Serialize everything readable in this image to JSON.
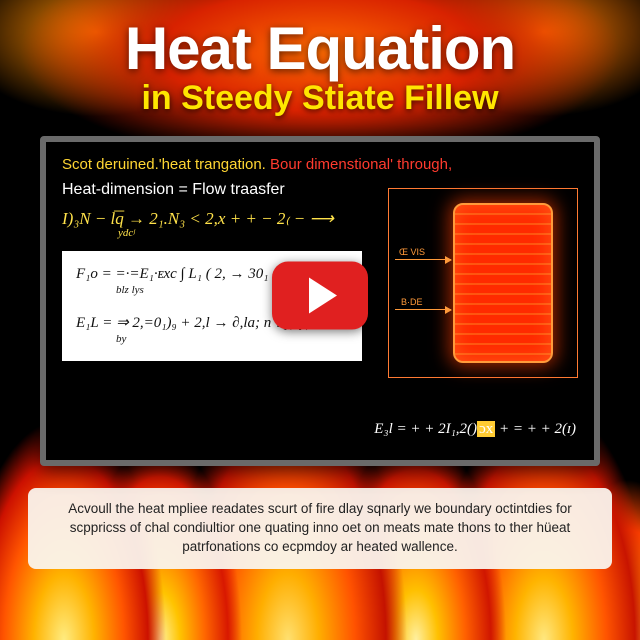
{
  "title": {
    "main": "Heat Equation",
    "sub": "in Steedy Stiate Fillew"
  },
  "slide": {
    "line1_yellow": "Scot deruined.'heat trangation.",
    "line1_red": "Bour dimenstional' through,",
    "line2": "Heat-dimension = Flow traasfer",
    "eq_yellow_main": "I)₃N − l͞q → 2₁.N₃ < 2,x + + − 2₍ − ⟶",
    "eq_yellow_sub": "ydcʲ",
    "whitebox": {
      "row1": "F₁o = =·=E₁·ᴇxc ∫ L₁ ( 2, → 30₁ = + 2,ĵ)",
      "row1_sub": "blz                    lys",
      "row2": "E₁L = ⇒ 2,=0₁)₉ + 2,l → ∂,la; n ?₁(ay)",
      "row2_sub": "by"
    },
    "diagram": {
      "label1": "Œ VIS",
      "label2": "B·DE",
      "outline_color": "#ff7a33",
      "fill_glow": "#ff2a00"
    },
    "eq_bottom_pre": "E₃l = + + 2I₁,2()",
    "eq_bottom_hl": "ɔx",
    "eq_bottom_post": " + = + + 2(ɪ)"
  },
  "caption": "Acvoull the heat mpliee readates scurt of fire dlay sqnarly we boundary octintdies for scppricss of chal condiultior one quating inno oet on meats mate thons to ther hüeat patrfonations co ecpmdoy ar heated wallence.",
  "colors": {
    "title_white": "#ffffff",
    "title_yellow": "#ffe600",
    "accent_red": "#ff3b2e",
    "accent_yellow": "#ffd633",
    "play_red": "#e02020",
    "slide_border": "#6a6a6a"
  }
}
